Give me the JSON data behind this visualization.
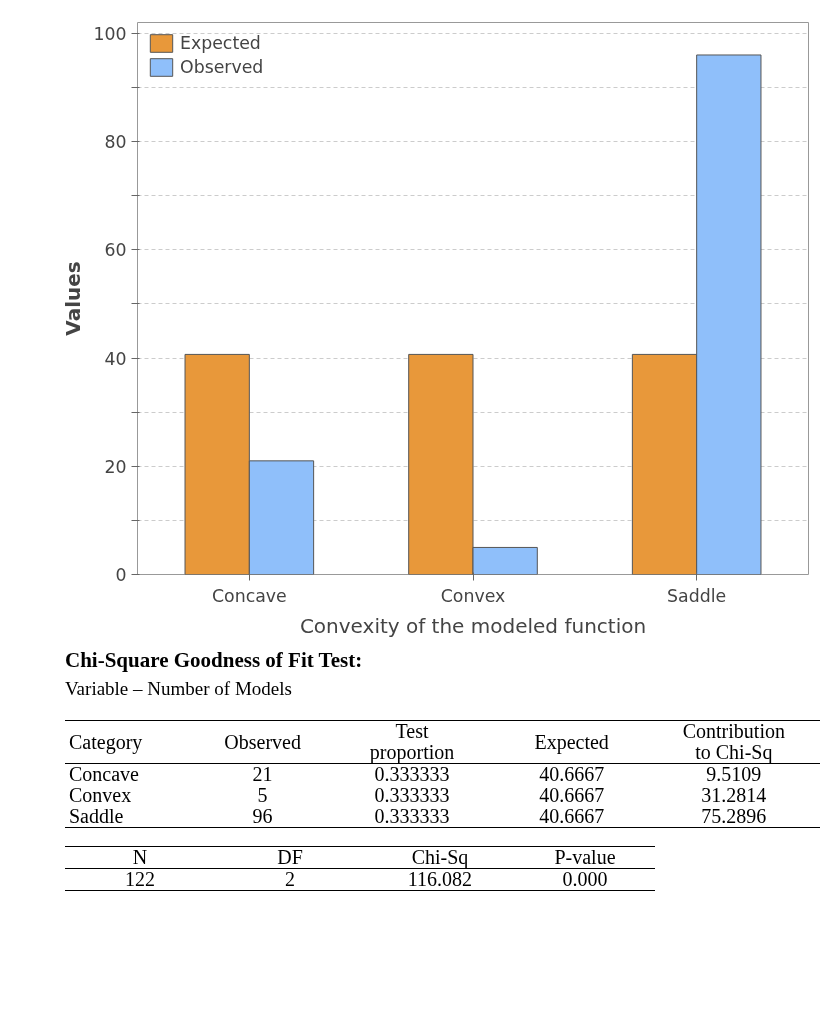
{
  "chart_data": {
    "type": "bar",
    "xlabel": "Convexity of the modeled function",
    "ylabel": "Values",
    "categories": [
      "Concave",
      "Convex",
      "Saddle"
    ],
    "series": [
      {
        "name": "Expected",
        "color": "#e8983a",
        "values": [
          40.6667,
          40.6667,
          40.6667
        ]
      },
      {
        "name": "Observed",
        "color": "#8fbffa",
        "values": [
          21,
          5,
          96
        ]
      }
    ],
    "ylim": [
      0,
      102
    ],
    "yticks": [
      0,
      {
        "value": 10,
        "label": null
      },
      20,
      {
        "value": 30,
        "label": null
      },
      40,
      {
        "value": 50,
        "label": null
      },
      60,
      {
        "value": 70,
        "label": null
      },
      80,
      {
        "value": 90,
        "label": null
      },
      100
    ],
    "grid": "y",
    "legend": "top left",
    "annotations": [
      "Chi-Square Goodness of Fit Test:",
      "Variable – Number of Models",
      "Category",
      "Observed",
      "Test\nproportion",
      "Expected",
      "Contribution\nto Chi-Sq",
      "Concave",
      "21",
      "0.333333",
      "40.6667",
      "9.5109",
      "Convex",
      "5",
      "0.333333",
      "40.6667",
      "31.2814",
      "Saddle",
      "96",
      "0.333333",
      "40.6667",
      "75.2896",
      "N",
      "DF",
      "Chi-Sq",
      "P-value",
      "122",
      "2",
      "116.082",
      "0.000"
    ]
  }
}
